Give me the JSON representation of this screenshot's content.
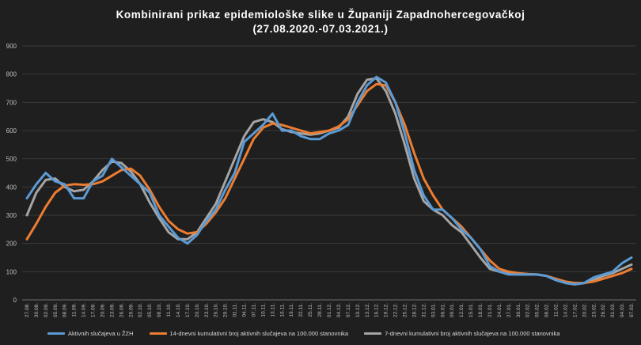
{
  "chart_data": {
    "type": "line",
    "title": "Kombinirani  prikaz  epidemiološke  slike  u  Županiji  Zapadnohercegovačkoj",
    "subtitle": "(27.08.2020.-07.03.2021.)",
    "ylim": [
      0,
      900
    ],
    "y_ticks": [
      "0",
      "100",
      "200",
      "300",
      "400",
      "500",
      "600",
      "700",
      "800",
      "900"
    ],
    "grid": true,
    "legend_position": "bottom",
    "categories": [
      "27.08.",
      "30.08.",
      "02.09.",
      "05.09.",
      "08.09.",
      "11.09.",
      "14.09.",
      "17.09.",
      "20.09.",
      "23.09.",
      "26.09.",
      "29.09.",
      "02.10.",
      "05.10.",
      "08.10.",
      "11.10.",
      "14.10.",
      "17.10.",
      "20.10.",
      "23.10.",
      "26.10.",
      "29.10.",
      "01.11.",
      "04.11.",
      "07.11.",
      "10.11.",
      "13.11.",
      "16.11.",
      "19.11.",
      "22.11.",
      "25.11.",
      "28.11.",
      "01.12.",
      "04.12.",
      "07.12.",
      "10.12.",
      "13.12.",
      "16.12.",
      "19.12.",
      "22.12.",
      "25.12.",
      "28.12.",
      "31.12.",
      "03.01.",
      "06.01.",
      "09.01.",
      "12.01.",
      "15.01.",
      "18.01.",
      "21.01.",
      "24.01.",
      "27.01.",
      "30.01.",
      "02.02.",
      "05.02.",
      "08.02.",
      "11.02.",
      "14.02.",
      "17.02.",
      "20.02.",
      "23.02.",
      "26.02.",
      "01.03.",
      "04.03.",
      "07.03."
    ],
    "series": [
      {
        "name": "Aktivnih slučajeva u ŽZH",
        "color": "#5b9bd5",
        "values": [
          360,
          410,
          450,
          420,
          410,
          360,
          360,
          420,
          440,
          500,
          470,
          440,
          410,
          380,
          300,
          260,
          220,
          200,
          230,
          280,
          320,
          390,
          450,
          560,
          590,
          620,
          660,
          600,
          600,
          580,
          570,
          570,
          590,
          600,
          620,
          700,
          760,
          790,
          770,
          700,
          590,
          460,
          370,
          320,
          320,
          290,
          250,
          220,
          180,
          120,
          100,
          90,
          90,
          90,
          90,
          85,
          70,
          60,
          55,
          60,
          80,
          90,
          100,
          130,
          150
        ]
      },
      {
        "name": "14-dnevni kumulativni broj aktivnih slučajeva na 100.000 stanovnika",
        "color": "#ed7d31",
        "values": [
          215,
          270,
          330,
          380,
          405,
          410,
          408,
          410,
          420,
          440,
          460,
          465,
          440,
          390,
          330,
          280,
          250,
          235,
          240,
          270,
          310,
          360,
          430,
          500,
          570,
          610,
          625,
          620,
          610,
          600,
          590,
          595,
          600,
          615,
          640,
          690,
          740,
          765,
          760,
          700,
          620,
          520,
          430,
          370,
          320,
          290,
          260,
          220,
          180,
          140,
          110,
          100,
          95,
          92,
          90,
          85,
          75,
          65,
          60,
          60,
          65,
          75,
          85,
          95,
          110
        ]
      },
      {
        "name": "7-dnevni kumulativni broj aktivnih slučajeva na 100.000 stanovnika",
        "color": "#a5a5a5",
        "values": [
          300,
          380,
          425,
          430,
          400,
          385,
          390,
          420,
          460,
          490,
          485,
          455,
          410,
          345,
          290,
          240,
          215,
          215,
          240,
          290,
          340,
          420,
          500,
          580,
          630,
          640,
          630,
          605,
          595,
          590,
          585,
          590,
          600,
          610,
          650,
          730,
          780,
          785,
          740,
          660,
          550,
          430,
          350,
          320,
          300,
          265,
          240,
          195,
          150,
          110,
          100,
          95,
          90,
          90,
          90,
          85,
          70,
          60,
          55,
          60,
          70,
          85,
          95,
          110,
          125
        ]
      }
    ]
  }
}
